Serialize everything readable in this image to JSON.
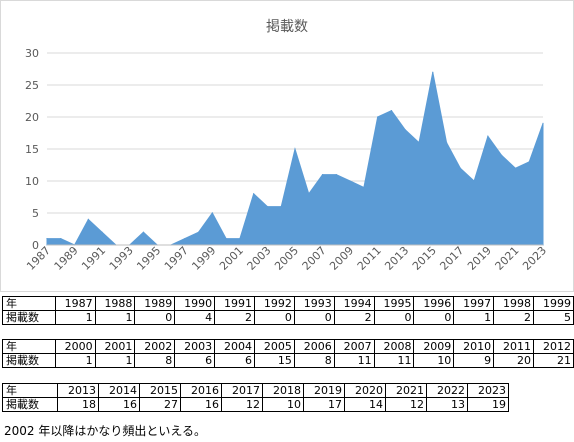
{
  "chart_data": {
    "type": "area",
    "title": "掲載数",
    "xlabel": "",
    "ylabel": "",
    "ylim": [
      0,
      30
    ],
    "yticks": [
      0,
      5,
      10,
      15,
      20,
      25,
      30
    ],
    "grid": true,
    "legend": "none",
    "color": "#5b9bd5",
    "x_tick_labels": [
      "1987",
      "1989",
      "1991",
      "1993",
      "1995",
      "1997",
      "1999",
      "2001",
      "2003",
      "2005",
      "2007",
      "2009",
      "2011",
      "2013",
      "2015",
      "2017",
      "2019",
      "2021",
      "2023"
    ],
    "x": [
      1987,
      1988,
      1989,
      1990,
      1991,
      1992,
      1993,
      1994,
      1995,
      1996,
      1997,
      1998,
      1999,
      2000,
      2001,
      2002,
      2003,
      2004,
      2005,
      2006,
      2007,
      2008,
      2009,
      2010,
      2011,
      2012,
      2013,
      2014,
      2015,
      2016,
      2017,
      2018,
      2019,
      2020,
      2021,
      2022,
      2023
    ],
    "values": [
      1,
      1,
      0,
      4,
      2,
      0,
      0,
      2,
      0,
      0,
      1,
      2,
      5,
      1,
      1,
      8,
      6,
      6,
      15,
      8,
      11,
      11,
      10,
      9,
      20,
      21,
      18,
      16,
      27,
      16,
      12,
      10,
      17,
      14,
      12,
      13,
      19
    ]
  },
  "table": {
    "row_header_year": "年",
    "row_header_count": "掲載数",
    "blocks": [
      {
        "years": [
          "1987",
          "1988",
          "1989",
          "1990",
          "1991",
          "1992",
          "1993",
          "1994",
          "1995",
          "1996",
          "1997",
          "1998",
          "1999"
        ],
        "counts": [
          "1",
          "1",
          "0",
          "4",
          "2",
          "0",
          "0",
          "2",
          "0",
          "0",
          "1",
          "2",
          "5"
        ]
      },
      {
        "years": [
          "2000",
          "2001",
          "2002",
          "2003",
          "2004",
          "2005",
          "2006",
          "2007",
          "2008",
          "2009",
          "2010",
          "2011",
          "2012"
        ],
        "counts": [
          "1",
          "1",
          "8",
          "6",
          "6",
          "15",
          "8",
          "11",
          "11",
          "10",
          "9",
          "20",
          "21"
        ]
      },
      {
        "years": [
          "2013",
          "2014",
          "2015",
          "2016",
          "2017",
          "2018",
          "2019",
          "2020",
          "2021",
          "2022",
          "2023"
        ],
        "counts": [
          "18",
          "16",
          "27",
          "16",
          "12",
          "10",
          "17",
          "14",
          "12",
          "13",
          "19"
        ]
      }
    ]
  },
  "note": "2002 年以降はかなり頻出といえる。"
}
